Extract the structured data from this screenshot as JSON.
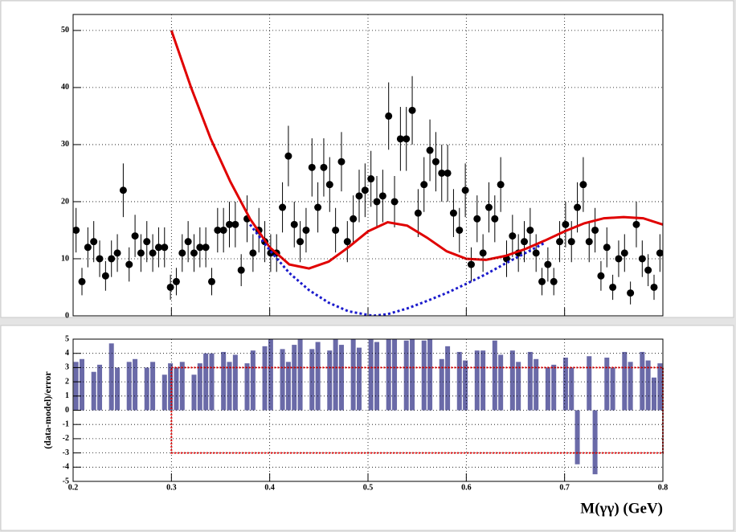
{
  "chart_data": [
    {
      "type": "scatter",
      "x": [
        0.203,
        0.209,
        0.215,
        0.221,
        0.227,
        0.233,
        0.239,
        0.245,
        0.251,
        0.257,
        0.263,
        0.269,
        0.275,
        0.281,
        0.287,
        0.293,
        0.299,
        0.305,
        0.311,
        0.317,
        0.323,
        0.329,
        0.335,
        0.341,
        0.347,
        0.353,
        0.359,
        0.365,
        0.371,
        0.377,
        0.383,
        0.389,
        0.395,
        0.401,
        0.407,
        0.413,
        0.419,
        0.425,
        0.431,
        0.437,
        0.443,
        0.449,
        0.455,
        0.461,
        0.467,
        0.473,
        0.479,
        0.485,
        0.491,
        0.497,
        0.503,
        0.509,
        0.515,
        0.521,
        0.527,
        0.533,
        0.539,
        0.545,
        0.551,
        0.557,
        0.563,
        0.569,
        0.575,
        0.581,
        0.587,
        0.593,
        0.599,
        0.605,
        0.611,
        0.617,
        0.623,
        0.629,
        0.635,
        0.641,
        0.647,
        0.653,
        0.659,
        0.665,
        0.671,
        0.677,
        0.683,
        0.689,
        0.695,
        0.701,
        0.707,
        0.713,
        0.719,
        0.725,
        0.731,
        0.737,
        0.743,
        0.749,
        0.755,
        0.761,
        0.767,
        0.773,
        0.779,
        0.785,
        0.791,
        0.797
      ],
      "values": [
        15,
        6,
        12,
        13,
        10,
        7,
        10,
        11,
        22,
        9,
        14,
        11,
        13,
        11,
        12,
        12,
        5,
        6,
        11,
        13,
        11,
        12,
        12,
        6,
        15,
        15,
        16,
        16,
        8,
        17,
        11,
        15,
        13,
        11,
        11,
        19,
        28,
        16,
        13,
        15,
        26,
        19,
        26,
        23,
        15,
        27,
        13,
        17,
        21,
        22,
        24,
        20,
        21,
        35,
        20,
        31,
        31,
        36,
        18,
        23,
        29,
        27,
        25,
        25,
        18,
        15,
        22,
        9,
        17,
        11,
        19,
        17,
        23,
        10,
        14,
        11,
        13,
        15,
        11,
        6,
        9,
        6,
        13,
        16,
        13,
        19,
        23,
        13,
        15,
        7,
        12,
        5,
        10,
        11,
        4,
        16,
        10,
        8,
        5,
        11
      ],
      "errors": [
        3.9,
        2.4,
        3.5,
        3.6,
        3.2,
        2.6,
        3.2,
        3.3,
        4.7,
        3,
        3.7,
        3.3,
        3.6,
        3.3,
        3.5,
        3.5,
        2.2,
        2.4,
        3.3,
        3.6,
        3.3,
        3.5,
        3.5,
        2.4,
        3.9,
        3.9,
        4,
        4,
        2.8,
        4.1,
        3.3,
        3.9,
        3.6,
        3.3,
        3.3,
        4.4,
        5.3,
        4,
        3.6,
        3.9,
        5.1,
        4.4,
        5.1,
        4.8,
        3.9,
        5.2,
        3.6,
        4.1,
        4.6,
        4.7,
        4.9,
        4.5,
        4.6,
        5.9,
        4.5,
        5.6,
        5.6,
        6,
        4.2,
        4.8,
        5.4,
        5.2,
        5,
        5,
        4.2,
        3.9,
        4.7,
        3,
        4.1,
        3.3,
        4.4,
        4.1,
        4.8,
        3.2,
        3.7,
        3.3,
        3.6,
        3.9,
        3.3,
        2.4,
        3,
        2.4,
        3.6,
        4,
        3.6,
        4.4,
        4.8,
        3.6,
        3.9,
        2.6,
        3.5,
        2.2,
        3.2,
        3.3,
        2,
        4,
        3.2,
        2.8,
        2.2,
        3.3
      ],
      "color": "#000000",
      "lines": [
        {
          "color": "#e00000",
          "style": "solid",
          "x": [
            0.3,
            0.32,
            0.34,
            0.36,
            0.38,
            0.4,
            0.42,
            0.44,
            0.46,
            0.48,
            0.5,
            0.52,
            0.54,
            0.56,
            0.58,
            0.6,
            0.62,
            0.64,
            0.66,
            0.68,
            0.7,
            0.72,
            0.74,
            0.76,
            0.78,
            0.8
          ],
          "values": [
            50,
            40,
            31,
            23.5,
            17,
            12,
            9,
            8.3,
            9.5,
            12,
            14.8,
            16.4,
            15.8,
            13.7,
            11.3,
            10,
            9.8,
            10.5,
            11.7,
            13.2,
            14.8,
            16.2,
            17.1,
            17.3,
            17.1,
            16
          ]
        },
        {
          "color": "#1a1acc",
          "style": "dotted",
          "x": [
            0.38,
            0.4,
            0.42,
            0.44,
            0.46,
            0.48,
            0.505,
            0.52,
            0.54,
            0.56,
            0.58,
            0.6,
            0.62,
            0.64,
            0.66,
            0.68
          ],
          "values": [
            16,
            11.5,
            7.5,
            4.5,
            2.3,
            0.8,
            0,
            0.3,
            1.3,
            2.6,
            4,
            5.6,
            7.3,
            9.2,
            11,
            12.8
          ]
        }
      ],
      "xlim": [
        0.2,
        0.8
      ],
      "xticks": [
        0.2,
        0.3,
        0.4,
        0.5,
        0.6,
        0.7,
        0.8
      ],
      "show_xtick_labels": false,
      "ylim": [
        0,
        52.8
      ],
      "yticks": [
        0,
        10,
        20,
        30,
        40,
        50
      ],
      "grid": true
    },
    {
      "type": "bar",
      "x": [
        0.203,
        0.209,
        0.215,
        0.221,
        0.227,
        0.233,
        0.239,
        0.245,
        0.251,
        0.257,
        0.263,
        0.269,
        0.275,
        0.281,
        0.287,
        0.293,
        0.299,
        0.305,
        0.311,
        0.317,
        0.323,
        0.329,
        0.335,
        0.341,
        0.347,
        0.353,
        0.359,
        0.365,
        0.371,
        0.377,
        0.383,
        0.389,
        0.395,
        0.401,
        0.407,
        0.413,
        0.419,
        0.425,
        0.431,
        0.437,
        0.443,
        0.449,
        0.455,
        0.461,
        0.467,
        0.473,
        0.479,
        0.485,
        0.491,
        0.497,
        0.503,
        0.509,
        0.515,
        0.521,
        0.527,
        0.533,
        0.539,
        0.545,
        0.551,
        0.557,
        0.563,
        0.569,
        0.575,
        0.581,
        0.587,
        0.593,
        0.599,
        0.605,
        0.611,
        0.617,
        0.623,
        0.629,
        0.635,
        0.641,
        0.647,
        0.653,
        0.659,
        0.665,
        0.671,
        0.677,
        0.683,
        0.689,
        0.695,
        0.701,
        0.707,
        0.713,
        0.719,
        0.725,
        0.731,
        0.737,
        0.743,
        0.749,
        0.755,
        0.761,
        0.767,
        0.773,
        0.779,
        0.785,
        0.791,
        0.797
      ],
      "values": [
        3.4,
        3.6,
        0,
        2.7,
        3.2,
        0,
        4.7,
        3.0,
        0,
        3.4,
        3.6,
        0,
        3.0,
        3.4,
        0,
        2.5,
        3.3,
        3.0,
        3.4,
        0,
        2.5,
        3.3,
        4.0,
        4.0,
        0,
        4.1,
        3.4,
        3.9,
        0,
        3.3,
        4.2,
        0,
        4.5,
        5.0,
        0,
        4.3,
        3.4,
        4.6,
        5.0,
        0,
        4.3,
        4.8,
        0,
        4.2,
        5.0,
        4.6,
        0,
        5.0,
        4.4,
        0,
        5.0,
        4.8,
        0,
        5.0,
        5.0,
        0,
        4.9,
        5.0,
        0,
        4.9,
        5.0,
        0,
        3.6,
        4.5,
        0,
        4.1,
        3.5,
        0,
        4.2,
        4.2,
        0,
        4.9,
        3.9,
        0,
        4.2,
        3.4,
        0,
        4.1,
        3.6,
        0,
        3.0,
        3.2,
        0,
        3.7,
        3.0,
        -3.8,
        0,
        3.8,
        -4.5,
        0,
        3.7,
        3.0,
        0,
        4.1,
        3.4,
        0,
        4.1,
        3.5,
        2.3,
        3.3
      ],
      "color": "#6a6aa8",
      "region": {
        "x": [
          0.3,
          0.8
        ],
        "y": [
          -3,
          3
        ],
        "color": "#e00000"
      },
      "xlabel": "M(γγ) (GeV)",
      "ylabel": "(data-model)/error",
      "xlim": [
        0.2,
        0.8
      ],
      "xticks": [
        0.2,
        0.3,
        0.4,
        0.5,
        0.6,
        0.7,
        0.8
      ],
      "ylim": [
        -5,
        5
      ],
      "yticks": [
        -5,
        -4,
        -3,
        -2,
        -1,
        0,
        1,
        2,
        3,
        4,
        5
      ],
      "grid": true
    }
  ]
}
